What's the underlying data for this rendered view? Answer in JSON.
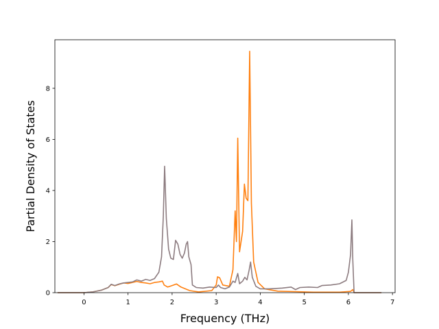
{
  "chart_data": {
    "type": "line",
    "title": "",
    "xlabel": "Frequency (THz)",
    "ylabel": "Partial Density of States",
    "xlim": [
      -0.66,
      7.06
    ],
    "ylim": [
      0,
      9.9
    ],
    "x_ticks": [
      "0",
      "1",
      "2",
      "3",
      "4",
      "5",
      "6",
      "7"
    ],
    "y_ticks": [
      "0",
      "2",
      "4",
      "6",
      "8"
    ],
    "grid": false,
    "legend": "none",
    "series": [
      {
        "color": "#ff7f0e",
        "points": [
          [
            -0.6,
            0
          ],
          [
            0.0,
            0
          ],
          [
            0.2,
            0.03
          ],
          [
            0.4,
            0.1
          ],
          [
            0.55,
            0.2
          ],
          [
            0.62,
            0.32
          ],
          [
            0.7,
            0.27
          ],
          [
            0.8,
            0.33
          ],
          [
            0.9,
            0.38
          ],
          [
            1.0,
            0.36
          ],
          [
            1.1,
            0.4
          ],
          [
            1.2,
            0.44
          ],
          [
            1.3,
            0.4
          ],
          [
            1.4,
            0.38
          ],
          [
            1.5,
            0.35
          ],
          [
            1.6,
            0.4
          ],
          [
            1.7,
            0.42
          ],
          [
            1.78,
            0.45
          ],
          [
            1.82,
            0.3
          ],
          [
            1.9,
            0.22
          ],
          [
            2.0,
            0.28
          ],
          [
            2.1,
            0.34
          ],
          [
            2.2,
            0.22
          ],
          [
            2.3,
            0.15
          ],
          [
            2.4,
            0.08
          ],
          [
            2.6,
            0.03
          ],
          [
            2.9,
            0.08
          ],
          [
            3.0,
            0.3
          ],
          [
            3.03,
            0.62
          ],
          [
            3.08,
            0.58
          ],
          [
            3.15,
            0.3
          ],
          [
            3.3,
            0.25
          ],
          [
            3.38,
            0.9
          ],
          [
            3.43,
            3.2
          ],
          [
            3.46,
            2.0
          ],
          [
            3.49,
            6.05
          ],
          [
            3.53,
            1.6
          ],
          [
            3.6,
            2.4
          ],
          [
            3.64,
            4.25
          ],
          [
            3.68,
            3.7
          ],
          [
            3.72,
            3.6
          ],
          [
            3.76,
            9.45
          ],
          [
            3.8,
            3.5
          ],
          [
            3.85,
            1.2
          ],
          [
            3.95,
            0.4
          ],
          [
            4.1,
            0.15
          ],
          [
            4.4,
            0.06
          ],
          [
            4.8,
            0.04
          ],
          [
            5.2,
            0.02
          ],
          [
            5.8,
            0.02
          ],
          [
            6.05,
            0.05
          ],
          [
            6.1,
            0.12
          ],
          [
            6.13,
            0
          ],
          [
            6.75,
            0
          ]
        ]
      },
      {
        "color": "#8c7b7f",
        "points": [
          [
            -0.6,
            0
          ],
          [
            0.0,
            0
          ],
          [
            0.2,
            0.03
          ],
          [
            0.4,
            0.1
          ],
          [
            0.55,
            0.2
          ],
          [
            0.62,
            0.33
          ],
          [
            0.7,
            0.28
          ],
          [
            0.8,
            0.34
          ],
          [
            0.9,
            0.38
          ],
          [
            1.0,
            0.4
          ],
          [
            1.1,
            0.42
          ],
          [
            1.2,
            0.5
          ],
          [
            1.3,
            0.45
          ],
          [
            1.4,
            0.52
          ],
          [
            1.5,
            0.48
          ],
          [
            1.6,
            0.55
          ],
          [
            1.7,
            0.8
          ],
          [
            1.76,
            1.4
          ],
          [
            1.8,
            3.0
          ],
          [
            1.83,
            4.95
          ],
          [
            1.87,
            2.9
          ],
          [
            1.92,
            1.7
          ],
          [
            1.97,
            1.35
          ],
          [
            2.03,
            1.3
          ],
          [
            2.08,
            2.05
          ],
          [
            2.13,
            1.9
          ],
          [
            2.18,
            1.5
          ],
          [
            2.23,
            1.35
          ],
          [
            2.28,
            1.55
          ],
          [
            2.32,
            1.9
          ],
          [
            2.35,
            2.0
          ],
          [
            2.38,
            1.4
          ],
          [
            2.43,
            1.1
          ],
          [
            2.46,
            0.3
          ],
          [
            2.55,
            0.2
          ],
          [
            2.7,
            0.18
          ],
          [
            2.85,
            0.22
          ],
          [
            3.0,
            0.2
          ],
          [
            3.05,
            0.3
          ],
          [
            3.1,
            0.2
          ],
          [
            3.2,
            0.15
          ],
          [
            3.3,
            0.22
          ],
          [
            3.38,
            0.45
          ],
          [
            3.43,
            0.4
          ],
          [
            3.49,
            0.75
          ],
          [
            3.53,
            0.35
          ],
          [
            3.6,
            0.45
          ],
          [
            3.65,
            0.6
          ],
          [
            3.7,
            0.5
          ],
          [
            3.75,
            0.9
          ],
          [
            3.78,
            1.2
          ],
          [
            3.82,
            0.6
          ],
          [
            3.9,
            0.25
          ],
          [
            4.0,
            0.15
          ],
          [
            4.2,
            0.15
          ],
          [
            4.5,
            0.18
          ],
          [
            4.7,
            0.22
          ],
          [
            4.8,
            0.12
          ],
          [
            4.9,
            0.2
          ],
          [
            5.1,
            0.22
          ],
          [
            5.3,
            0.2
          ],
          [
            5.4,
            0.28
          ],
          [
            5.6,
            0.3
          ],
          [
            5.8,
            0.35
          ],
          [
            5.95,
            0.48
          ],
          [
            6.0,
            0.8
          ],
          [
            6.05,
            1.5
          ],
          [
            6.08,
            2.85
          ],
          [
            6.1,
            1.3
          ],
          [
            6.13,
            0
          ],
          [
            6.75,
            0
          ]
        ]
      }
    ]
  }
}
